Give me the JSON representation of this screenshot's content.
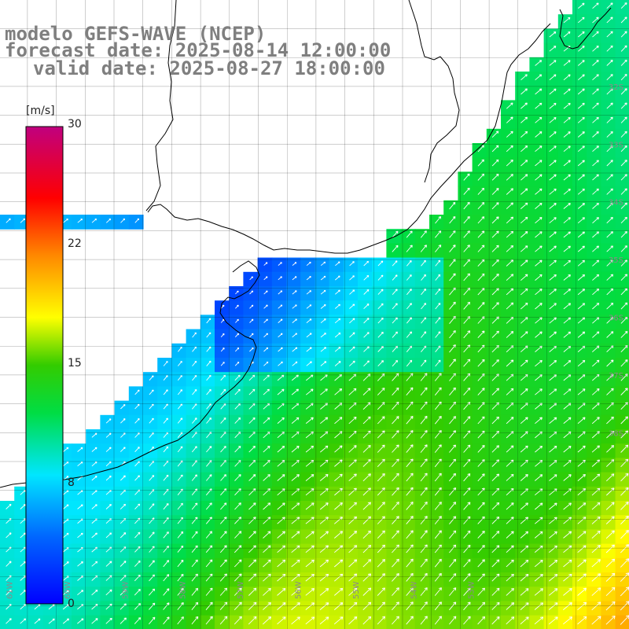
{
  "title": {
    "line1": "modelo GEFS-WAVE (NCEP)",
    "line2": "forecast date: 2025-08-14 12:00:00",
    "line3": "valid date: 2025-08-27 18:00:00"
  },
  "colorbar": {
    "unit": "[m/s]",
    "ticks": [
      {
        "label": "30",
        "value": 30
      },
      {
        "label": "22",
        "value": 22
      },
      {
        "label": "15",
        "value": 15
      },
      {
        "label": "8",
        "value": 8
      },
      {
        "label": "0",
        "value": 0
      }
    ],
    "min": 0,
    "max": 30
  },
  "map": {
    "variable": "wind speed",
    "units": "m/s",
    "lat_labels": [
      "32S",
      "33S",
      "34S",
      "35S",
      "36S",
      "37S",
      "38S"
    ],
    "lon_labels": [
      "61W",
      "60W",
      "59W",
      "58W",
      "57W",
      "56W",
      "55W",
      "54W",
      "53W"
    ],
    "lon_range": [
      -61.6,
      -50.8
    ],
    "lat_range": [
      -41.3,
      -30.5
    ],
    "grid_step_deg": 0.5,
    "colors": {
      "grid": "#000000",
      "coast": "#000000",
      "land": "#ffffff",
      "arrows": "#ffffff",
      "labels": "#8a8a8a",
      "title": "#7f7f7f"
    }
  }
}
